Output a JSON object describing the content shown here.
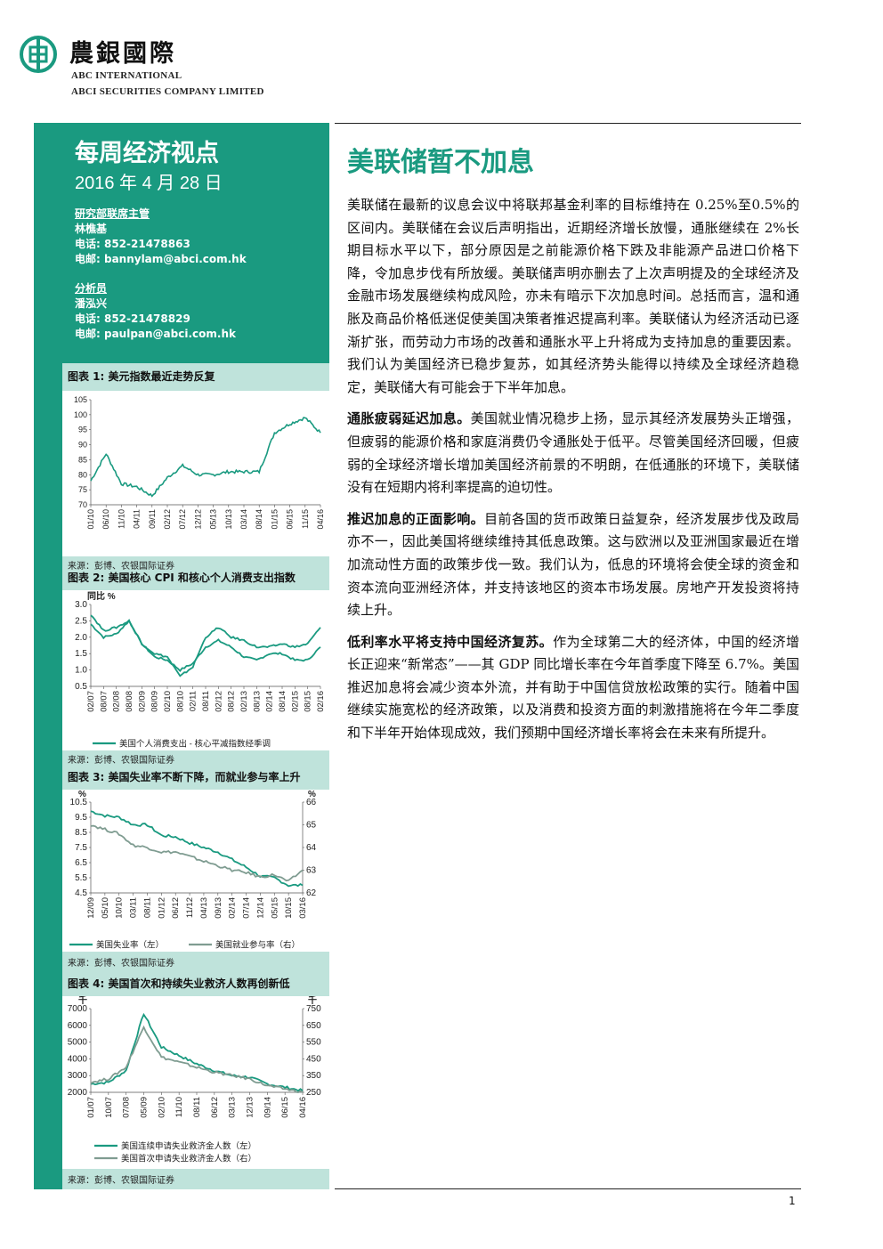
{
  "header": {
    "brand_cn": "農銀國際",
    "brand_en1": "ABC INTERNATIONAL",
    "brand_en2": "ABCI SECURITIES COMPANY LIMITED"
  },
  "report": {
    "title": "每周经济视点",
    "date": "2016 年 4 月 28 日"
  },
  "contacts": [
    {
      "role": "研究部联席主管",
      "name": "林樵基",
      "phone": "电话: 852-21478863",
      "email": "电邮: bannylam@abci.com.hk"
    },
    {
      "role": "分析员",
      "name": "潘泓兴",
      "phone": "电话: 852-21478829",
      "email": "电邮: paulpan@abci.com.hk"
    }
  ],
  "colors": {
    "teal": "#1a9a80",
    "teal_light": "#bfe3db",
    "gray_series": "#7f9c91"
  },
  "charts": [
    {
      "title": "图表 1: 美元指数最近走势反复",
      "source": "来源：彭博、农银国际证券",
      "chart_data": {
        "type": "line",
        "x": [
          "01/10",
          "06/10",
          "11/10",
          "04/11",
          "09/11",
          "02/12",
          "07/12",
          "12/12",
          "05/13",
          "10/13",
          "03/14",
          "08/14",
          "01/15",
          "06/15",
          "11/15",
          "04/16"
        ],
        "series": [
          {
            "values": [
              78,
              87,
              77,
              76,
              73,
              79,
              83,
              80,
              80,
              81,
              81,
              81,
              94,
              97,
              99,
              94
            ]
          }
        ],
        "ylim": [
          70,
          105
        ],
        "yticks": [
          70,
          75,
          80,
          85,
          90,
          95,
          100,
          105
        ]
      }
    },
    {
      "title": "图表 2: 美国核心 CPI 和核心个人消费支出指数",
      "source": "来源：彭博、农银国际证券",
      "chart_data": {
        "type": "line",
        "ylabel": "同比 %",
        "x": [
          "02/07",
          "08/07",
          "02/08",
          "08/08",
          "02/09",
          "08/09",
          "02/10",
          "08/10",
          "02/11",
          "08/11",
          "02/12",
          "08/12",
          "02/13",
          "08/13",
          "02/14",
          "08/14",
          "02/15",
          "08/15",
          "02/16"
        ],
        "series": [
          {
            "name": "美国个人消费支出 - 核心平减指数经季调",
            "values": [
              2.4,
              2.0,
              2.1,
              2.5,
              1.8,
              1.4,
              1.3,
              1.0,
              1.2,
              1.7,
              1.9,
              1.7,
              1.4,
              1.3,
              1.5,
              1.5,
              1.3,
              1.3,
              1.7
            ]
          },
          {
            "values": [
              2.7,
              2.2,
              2.3,
              2.5,
              1.8,
              1.5,
              1.4,
              0.8,
              1.1,
              2.0,
              2.3,
              2.0,
              1.9,
              1.7,
              1.7,
              1.8,
              1.7,
              1.8,
              2.3
            ]
          }
        ],
        "ylim": [
          0.5,
          3.0
        ],
        "yticks": [
          0.5,
          1.0,
          1.5,
          2.0,
          2.5,
          3.0
        ]
      }
    },
    {
      "title": "图表 3: 美国失业率不断下降，而就业参与率上升",
      "source": "来源：彭博、农银国际证券",
      "chart_data": {
        "type": "line",
        "ylabel_left": "%",
        "ylabel_right": "%",
        "x": [
          "12/09",
          "05/10",
          "10/10",
          "03/11",
          "08/11",
          "01/12",
          "06/12",
          "11/12",
          "04/13",
          "09/13",
          "02/14",
          "07/14",
          "12/14",
          "05/15",
          "10/15",
          "03/16"
        ],
        "series": [
          {
            "name": "美国失业率（左）",
            "axis": "left",
            "values": [
              9.9,
              9.6,
              9.5,
              9.0,
              9.0,
              8.3,
              8.2,
              7.8,
              7.5,
              7.2,
              6.7,
              6.2,
              5.6,
              5.5,
              5.0,
              5.0
            ]
          },
          {
            "name": "美国就业参与率（右）",
            "axis": "right",
            "values": [
              65.0,
              64.8,
              64.6,
              64.1,
              64.0,
              63.8,
              63.8,
              63.6,
              63.4,
              63.2,
              63.0,
              62.9,
              62.7,
              62.8,
              62.5,
              63.0
            ]
          }
        ],
        "ylim_left": [
          4.5,
          10.5
        ],
        "yticks_left": [
          4.5,
          5.5,
          6.5,
          7.5,
          8.5,
          9.5,
          10.5
        ],
        "ylim_right": [
          62,
          66
        ],
        "yticks_right": [
          62,
          63,
          64,
          65,
          66
        ]
      }
    },
    {
      "title": "图表 4: 美国首次和持续失业救济人数再创新低",
      "source": "来源：彭博、农银国际证券",
      "chart_data": {
        "type": "line",
        "ylabel_left": "千",
        "ylabel_right": "千",
        "x": [
          "01/07",
          "10/07",
          "07/08",
          "05/09",
          "02/10",
          "11/10",
          "08/11",
          "06/12",
          "03/13",
          "12/13",
          "09/14",
          "06/15",
          "04/16"
        ],
        "series": [
          {
            "name": "美国连续申请失业救济金人数（左）",
            "axis": "left",
            "values": [
              2500,
              2600,
              3300,
              6700,
              4700,
              4200,
              3700,
              3300,
              3000,
              2900,
              2500,
              2300,
              2100
            ]
          },
          {
            "name": "美国首次申请失业救济金人数（右）",
            "axis": "right",
            "values": [
              310,
              330,
              400,
              640,
              460,
              430,
              400,
              370,
              350,
              330,
              290,
              270,
              250
            ]
          }
        ],
        "ylim_left": [
          2000,
          7000
        ],
        "yticks_left": [
          2000,
          3000,
          4000,
          5000,
          6000,
          7000
        ],
        "ylim_right": [
          250,
          750
        ],
        "yticks_right": [
          250,
          350,
          450,
          550,
          650,
          750
        ]
      }
    }
  ],
  "article": {
    "headline": "美联储暂不加息",
    "paragraphs": [
      {
        "lead": "",
        "text": "美联储在最新的议息会议中将联邦基金利率的目标维持在 0.25%至0.5%的区间内。美联储在会议后声明指出，近期经济增长放慢，通胀继续在 2%长期目标水平以下，部分原因是之前能源价格下跌及非能源产品进口价格下降，令加息步伐有所放缓。美联储声明亦删去了上次声明提及的全球经济及金融市场发展继续构成风险，亦未有暗示下次加息时间。总括而言，温和通胀及商品价格低迷促使美国决策者推迟提高利率。美联储认为经济活动已逐渐扩张，而劳动力市场的改善和通胀水平上升将成为支持加息的重要因素。我们认为美国经济已稳步复苏，如其经济势头能得以持续及全球经济趋稳定，美联储大有可能会于下半年加息。"
      },
      {
        "lead": "通胀疲弱延迟加息。",
        "text": "美国就业情况稳步上扬，显示其经济发展势头正增强，但疲弱的能源价格和家庭消费仍令通胀处于低平。尽管美国经济回暖，但疲弱的全球经济增长增加美国经济前景的不明朗，在低通胀的环境下，美联储没有在短期内将利率提高的迫切性。"
      },
      {
        "lead": "推迟加息的正面影响。",
        "text": "目前各国的货币政策日益复杂，经济发展步伐及政局亦不一，因此美国将继续维持其低息政策。这与欧洲以及亚洲国家最近在增加流动性方面的政策步伐一致。我们认为，低息的环境将会使全球的资金和资本流向亚洲经济体，并支持该地区的资本市场发展。房地产开发投资将持续上升。"
      },
      {
        "lead": "低利率水平将支持中国经济复苏。",
        "text": "作为全球第二大的经济体，中国的经济增长正迎来“新常态”——其 GDP 同比增长率在今年首季度下降至 6.7%。美国推迟加息将会减少资本外流，并有助于中国信贷放松政策的实行。随着中国继续实施宽松的经济政策，以及消费和投资方面的刺激措施将在今年二季度和下半年开始体现成效，我们预期中国经济增长率将会在未来有所提升。"
      }
    ]
  },
  "page_number": "1"
}
